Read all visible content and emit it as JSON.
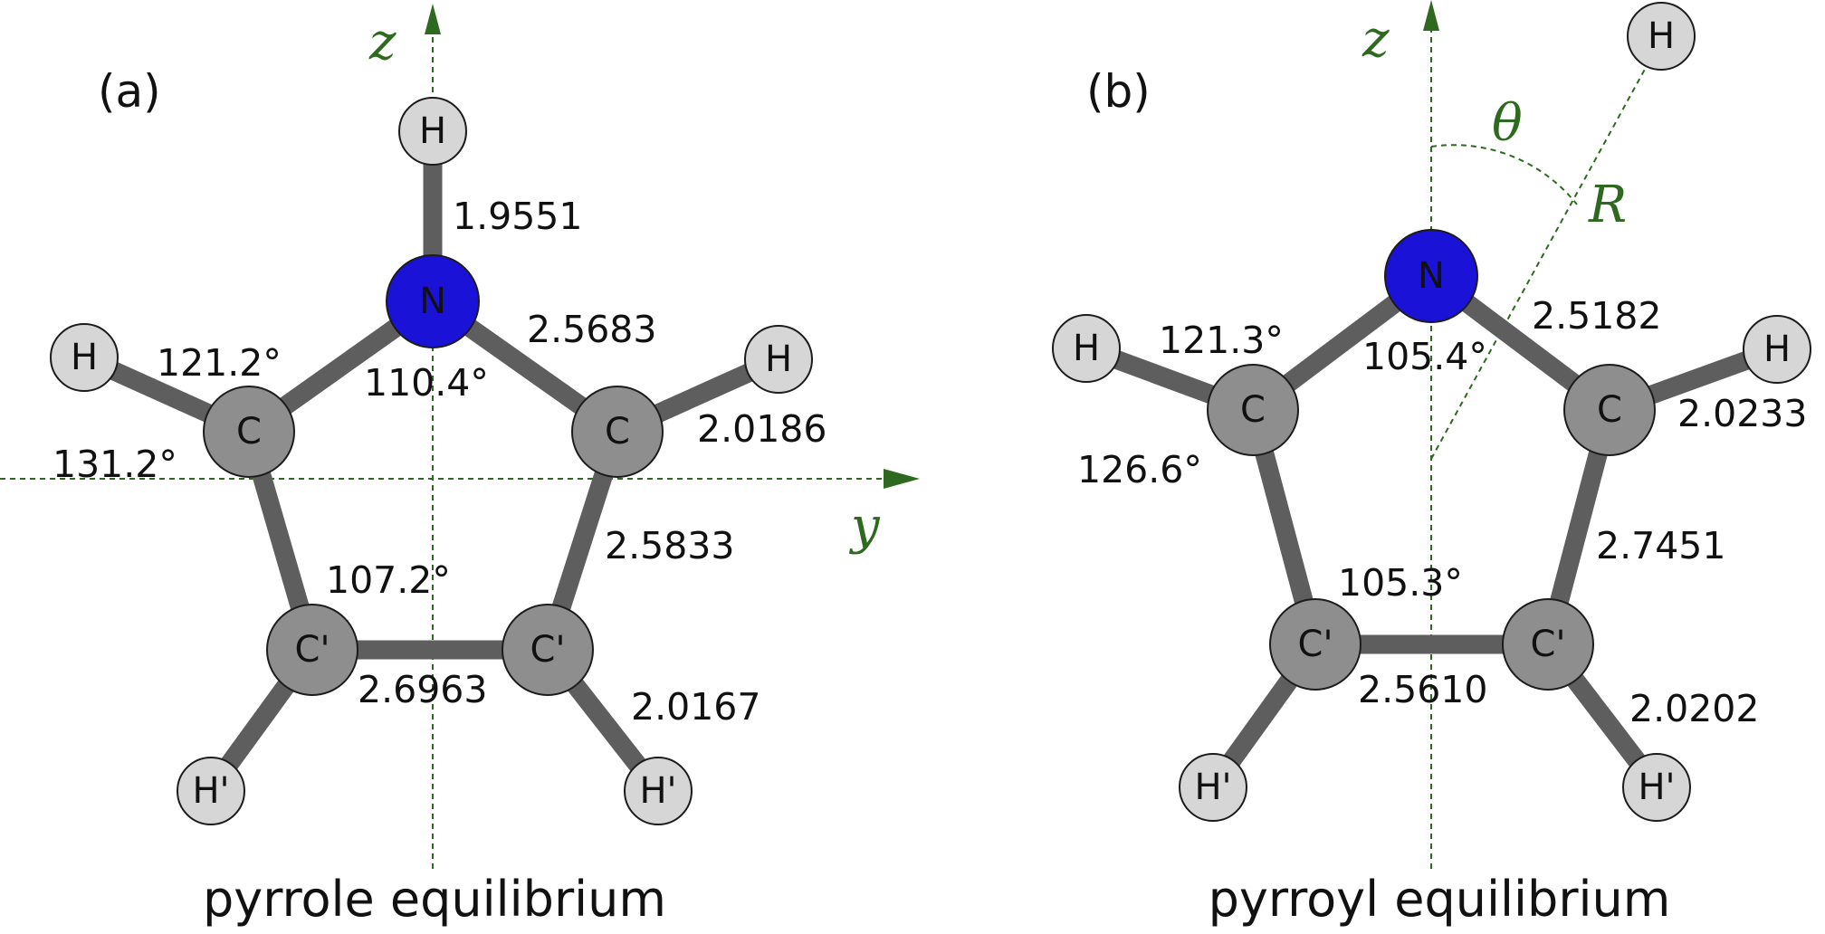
{
  "panel_a": {
    "label": "(a)",
    "caption": "pyrrole equilibrium",
    "axis_z": "z",
    "axis_y": "y",
    "atoms": {
      "N": "N",
      "H_top": "H",
      "C_left": "C",
      "C_right": "C",
      "H_left": "H",
      "H_right": "H",
      "Cp_left": "C'",
      "Cp_right": "C'",
      "Hp_left": "H'",
      "Hp_right": "H'"
    },
    "bond_lengths": {
      "NH": "1.9551",
      "NC": "2.5683",
      "CH": "2.0186",
      "CCp": "2.5833",
      "CpCp": "2.6963",
      "CpHp": "2.0167"
    },
    "angles": {
      "HCN": "121.2°",
      "CNC": "110.4°",
      "HCCp": "131.2°",
      "CCpCp": "107.2°"
    }
  },
  "panel_b": {
    "label": "(b)",
    "caption": "pyrroyl equilibrium",
    "axis_z": "z",
    "theta": "θ",
    "R": "R",
    "atoms": {
      "N": "N",
      "H_far": "H",
      "C_left": "C",
      "C_right": "C",
      "H_left": "H",
      "H_right": "H",
      "Cp_left": "C'",
      "Cp_right": "C'",
      "Hp_left": "H'",
      "Hp_right": "H'"
    },
    "bond_lengths": {
      "NC": "2.5182",
      "CH": "2.0233",
      "CCp": "2.7451",
      "CpCp": "2.5610",
      "CpHp": "2.0202"
    },
    "angles": {
      "HCN": "121.3°",
      "CNC": "105.4°",
      "HCCp": "126.6°",
      "CCpCp": "105.3°"
    }
  }
}
